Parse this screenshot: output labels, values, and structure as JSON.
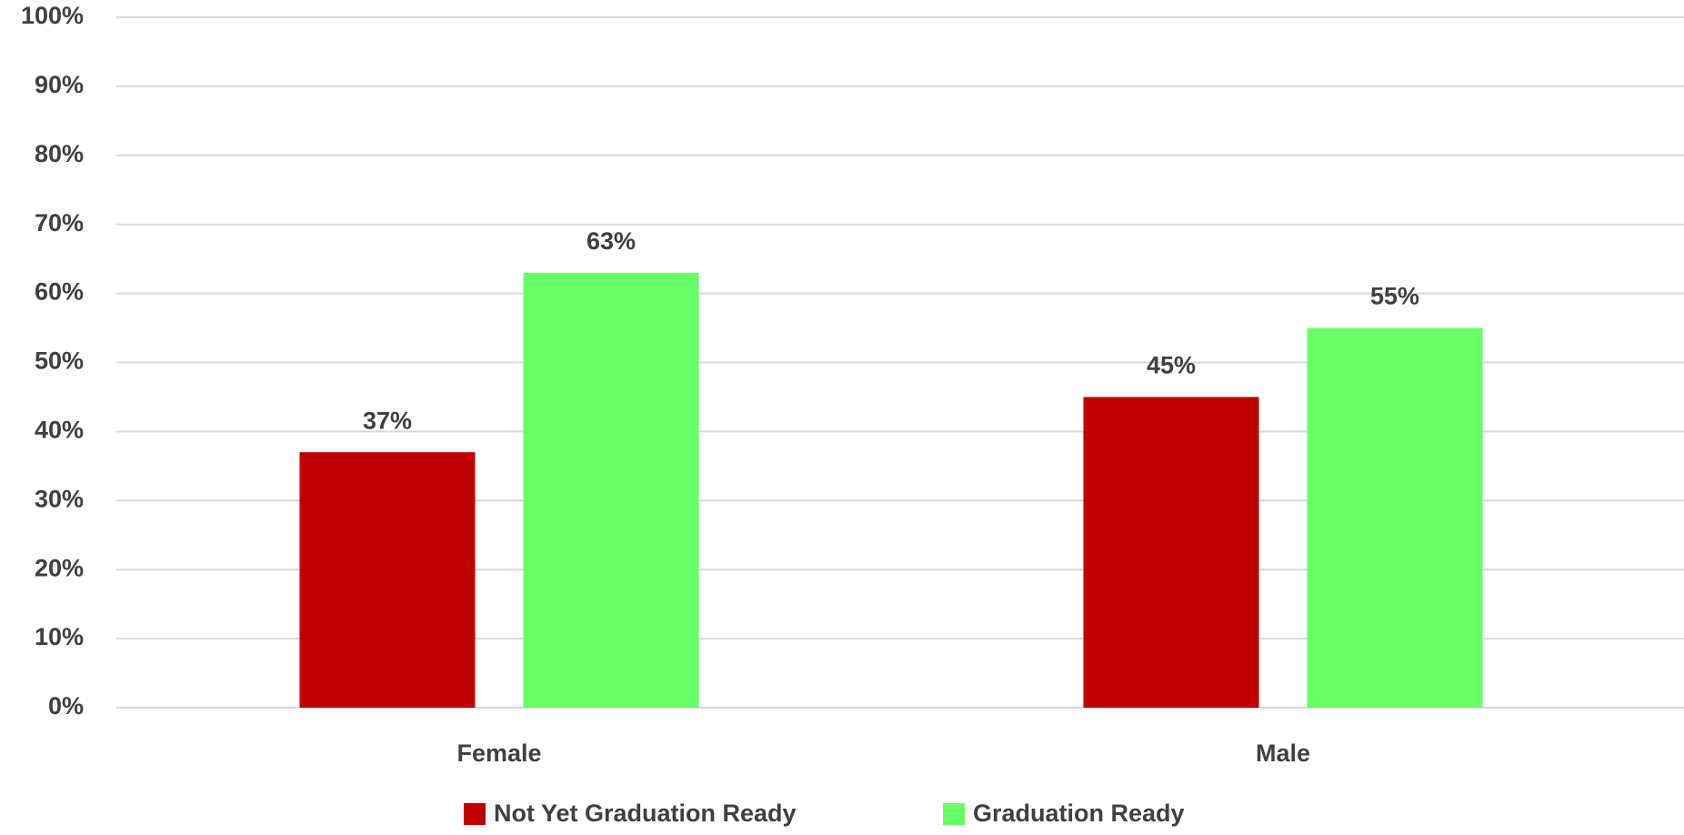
{
  "chart_data": {
    "type": "bar",
    "categories": [
      "Female",
      "Male"
    ],
    "series": [
      {
        "name": "Not Yet Graduation Ready",
        "color": "#c00000",
        "values": [
          37,
          45
        ],
        "value_labels": [
          "37%",
          "45%"
        ]
      },
      {
        "name": "Graduation Ready",
        "color": "#66ff66",
        "values": [
          63,
          55
        ],
        "value_labels": [
          "63%",
          "55%"
        ]
      }
    ],
    "ylim": [
      0,
      100
    ],
    "yticks": [
      {
        "value": 0,
        "label": "0%"
      },
      {
        "value": 10,
        "label": "10%"
      },
      {
        "value": 20,
        "label": "20%"
      },
      {
        "value": 30,
        "label": "30%"
      },
      {
        "value": 40,
        "label": "40%"
      },
      {
        "value": 50,
        "label": "50%"
      },
      {
        "value": 60,
        "label": "60%"
      },
      {
        "value": 70,
        "label": "70%"
      },
      {
        "value": 80,
        "label": "80%"
      },
      {
        "value": 90,
        "label": "90%"
      },
      {
        "value": 100,
        "label": "100%"
      }
    ],
    "grid": true,
    "legend": "bottom"
  }
}
